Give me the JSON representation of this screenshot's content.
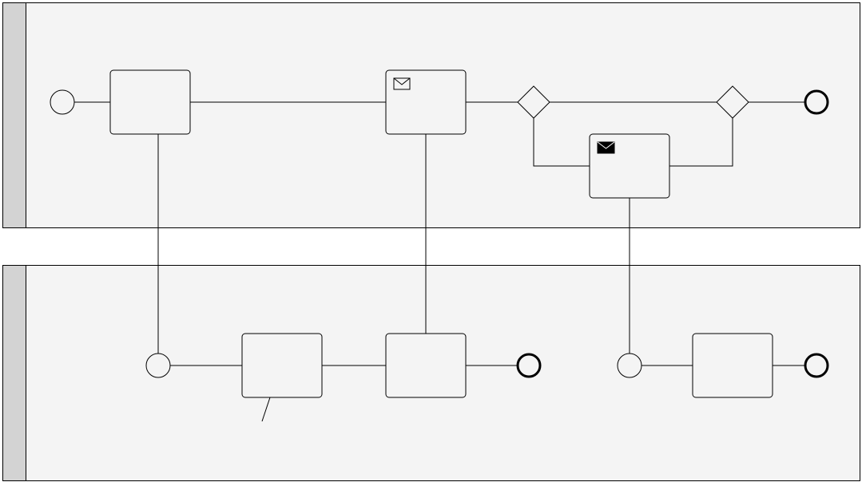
{
  "diagram": {
    "type": "bpmn-collaboration",
    "colors": {
      "pool_fill": "#f4f4f4",
      "pool_header": "#d3d3d3",
      "stroke": "#000000"
    },
    "pools": [
      {
        "name": "pool-top",
        "title": ""
      },
      {
        "name": "pool-bottom",
        "title": ""
      }
    ],
    "tasks": [
      {
        "name": "task-1",
        "label": "",
        "marker": "none"
      },
      {
        "name": "task-send-message",
        "label": "",
        "marker": "envelope-outline-icon"
      },
      {
        "name": "task-receive-message",
        "label": "",
        "marker": "envelope-filled-icon"
      },
      {
        "name": "task-b1",
        "label": "",
        "marker": "none"
      },
      {
        "name": "task-b2",
        "label": "",
        "marker": "none"
      },
      {
        "name": "task-b3",
        "label": "",
        "marker": "none"
      }
    ],
    "events": [
      {
        "name": "start-event-top",
        "kind": "start"
      },
      {
        "name": "end-event-top",
        "kind": "end"
      },
      {
        "name": "start-event-bottom-1",
        "kind": "start"
      },
      {
        "name": "end-event-bottom-1",
        "kind": "end"
      },
      {
        "name": "start-event-bottom-2",
        "kind": "start"
      },
      {
        "name": "end-event-bottom-2",
        "kind": "end"
      }
    ],
    "gateways": [
      {
        "name": "gateway-split",
        "kind": "exclusive"
      },
      {
        "name": "gateway-join",
        "kind": "exclusive"
      }
    ]
  }
}
